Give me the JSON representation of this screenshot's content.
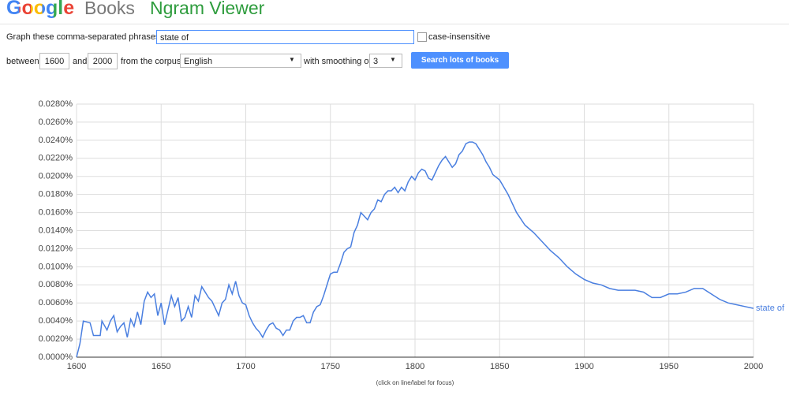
{
  "header": {
    "logo": "Google",
    "books": "Books",
    "title": "Ngram Viewer"
  },
  "form": {
    "phrases_label": "Graph these comma-separated phrases:",
    "phrases_value": "state of",
    "case_label": "case-insensitive",
    "between": "between",
    "start_year": "1600",
    "and": "and",
    "end_year": "2000",
    "corpus_label": "from the corpus",
    "corpus": "English",
    "smoothing_label": "with smoothing of",
    "smoothing": "3",
    "button": "Search lots of books"
  },
  "chart_data": {
    "type": "line",
    "x": [
      1600,
      1602,
      1604,
      1608,
      1610,
      1614,
      1615,
      1618,
      1620,
      1622,
      1624,
      1626,
      1628,
      1630,
      1632,
      1634,
      1636,
      1638,
      1640,
      1642,
      1644,
      1646,
      1648,
      1650,
      1652,
      1654,
      1656,
      1658,
      1660,
      1662,
      1664,
      1666,
      1668,
      1670,
      1672,
      1674,
      1676,
      1678,
      1680,
      1682,
      1684,
      1686,
      1688,
      1690,
      1692,
      1694,
      1696,
      1698,
      1700,
      1702,
      1704,
      1706,
      1708,
      1710,
      1712,
      1714,
      1716,
      1718,
      1720,
      1722,
      1724,
      1726,
      1728,
      1730,
      1732,
      1734,
      1736,
      1738,
      1740,
      1742,
      1744,
      1746,
      1748,
      1750,
      1752,
      1754,
      1756,
      1758,
      1760,
      1762,
      1764,
      1766,
      1768,
      1770,
      1772,
      1774,
      1776,
      1778,
      1780,
      1782,
      1784,
      1786,
      1788,
      1790,
      1792,
      1794,
      1796,
      1798,
      1800,
      1802,
      1804,
      1806,
      1808,
      1810,
      1812,
      1814,
      1816,
      1818,
      1820,
      1822,
      1824,
      1826,
      1828,
      1830,
      1832,
      1834,
      1836,
      1838,
      1840,
      1842,
      1844,
      1846,
      1850,
      1855,
      1860,
      1865,
      1870,
      1875,
      1880,
      1885,
      1890,
      1895,
      1900,
      1905,
      1910,
      1915,
      1920,
      1925,
      1930,
      1935,
      1940,
      1945,
      1950,
      1955,
      1960,
      1965,
      1970,
      1975,
      1980,
      1985,
      1990,
      1995,
      2000
    ],
    "series": [
      {
        "name": "state of",
        "color": "#4a7fe0",
        "values": [
          0.0,
          0.0015,
          0.004,
          0.0038,
          0.0024,
          0.0024,
          0.004,
          0.003,
          0.004,
          0.0046,
          0.0028,
          0.0034,
          0.0038,
          0.0022,
          0.0042,
          0.0034,
          0.005,
          0.0036,
          0.0062,
          0.0072,
          0.0066,
          0.007,
          0.0046,
          0.006,
          0.0036,
          0.0052,
          0.0068,
          0.0056,
          0.0066,
          0.004,
          0.0044,
          0.0056,
          0.0044,
          0.0068,
          0.0062,
          0.0078,
          0.0072,
          0.0066,
          0.0062,
          0.0054,
          0.0046,
          0.006,
          0.0064,
          0.008,
          0.007,
          0.0084,
          0.0068,
          0.006,
          0.0058,
          0.0046,
          0.0038,
          0.0032,
          0.0028,
          0.0022,
          0.003,
          0.0036,
          0.0038,
          0.0032,
          0.003,
          0.0024,
          0.003,
          0.003,
          0.004,
          0.0044,
          0.0044,
          0.0046,
          0.0038,
          0.0038,
          0.005,
          0.0056,
          0.0058,
          0.0068,
          0.008,
          0.0092,
          0.0094,
          0.0094,
          0.0104,
          0.0116,
          0.012,
          0.0122,
          0.0138,
          0.0146,
          0.016,
          0.0156,
          0.0152,
          0.016,
          0.0164,
          0.0174,
          0.0172,
          0.018,
          0.0184,
          0.0184,
          0.0188,
          0.0182,
          0.0188,
          0.0184,
          0.0194,
          0.02,
          0.0196,
          0.0204,
          0.0208,
          0.0206,
          0.0198,
          0.0196,
          0.0204,
          0.0212,
          0.0218,
          0.0222,
          0.0216,
          0.021,
          0.0214,
          0.0224,
          0.0228,
          0.0236,
          0.0238,
          0.0238,
          0.0236,
          0.023,
          0.0224,
          0.0216,
          0.021,
          0.0202,
          0.0196,
          0.018,
          0.016,
          0.0146,
          0.0138,
          0.0128,
          0.0118,
          0.011,
          0.01,
          0.0092,
          0.0086,
          0.0082,
          0.008,
          0.0076,
          0.0074,
          0.0074,
          0.0074,
          0.0072,
          0.0066,
          0.0066,
          0.007,
          0.007,
          0.0072,
          0.0076,
          0.0076,
          0.007,
          0.0064,
          0.006,
          0.0058,
          0.0056,
          0.0054
        ]
      }
    ],
    "xlim": [
      1600,
      2000
    ],
    "xticks": [
      1600,
      1650,
      1700,
      1750,
      1800,
      1850,
      1900,
      1950,
      2000
    ],
    "ylim": [
      0,
      0.028
    ],
    "yticks": [
      {
        "value": 0,
        "label": "0.0000%"
      },
      {
        "value": 0.002,
        "label": "0.0020%"
      },
      {
        "value": 0.004,
        "label": "0.0040%"
      },
      {
        "value": 0.006,
        "label": "0.0060%"
      },
      {
        "value": 0.008,
        "label": "0.0080%"
      },
      {
        "value": 0.01,
        "label": "0.0100%"
      },
      {
        "value": 0.012,
        "label": "0.0120%"
      },
      {
        "value": 0.014,
        "label": "0.0140%"
      },
      {
        "value": 0.016,
        "label": "0.0160%"
      },
      {
        "value": 0.018,
        "label": "0.0180%"
      },
      {
        "value": 0.02,
        "label": "0.0200%"
      },
      {
        "value": 0.022,
        "label": "0.0220%"
      },
      {
        "value": 0.024,
        "label": "0.0240%"
      },
      {
        "value": 0.026,
        "label": "0.0260%"
      },
      {
        "value": 0.028,
        "label": "0.0280%"
      }
    ],
    "grid": true,
    "note": "(click on line/label for focus)"
  }
}
